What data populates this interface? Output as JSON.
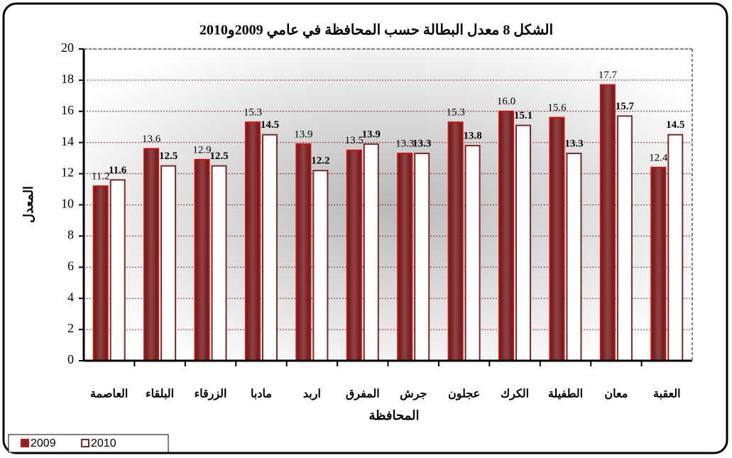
{
  "chart_data": {
    "type": "bar",
    "title": "الشكل 8 معدل البطالة حسب المحافظة في عامي 2009و2010",
    "x_label": "المحافظة",
    "y_label": "المعدل",
    "categories": [
      "العاصمة",
      "البلقاء",
      "الزرقاء",
      "مادبا",
      "اربد",
      "المفرق",
      "جرش",
      "عجلون",
      "الكرك",
      "الطفيلة",
      "معان",
      "العقبة"
    ],
    "series": [
      {
        "name": "2009",
        "color": "#7a2a2a",
        "values": [
          11.2,
          13.6,
          12.9,
          15.3,
          13.9,
          13.5,
          13.3,
          15.3,
          16.0,
          15.6,
          17.7,
          12.4
        ],
        "value_labels": [
          "11.2",
          "13.6",
          "12.9",
          "15.3",
          "13.9",
          "13.5",
          "13.3",
          "15.3",
          "16.0",
          "15.6",
          "17.7",
          "12.4"
        ]
      },
      {
        "name": "2010",
        "color": "#ffffff",
        "values": [
          11.6,
          12.5,
          12.5,
          14.5,
          12.2,
          13.9,
          13.3,
          13.8,
          15.1,
          13.3,
          15.7,
          14.5
        ],
        "value_labels": [
          "11.6",
          "12.5",
          "12.5",
          "14.5",
          "12.2",
          "13.9",
          "13.3",
          "13.8",
          "15.1",
          "13.3",
          "15.7",
          "14.5"
        ]
      }
    ],
    "ylim": [
      0,
      20
    ],
    "yticks": [
      0,
      2,
      4,
      6,
      8,
      10,
      12,
      14,
      16,
      18,
      20
    ],
    "grid": true,
    "legend": "bottom-left"
  }
}
